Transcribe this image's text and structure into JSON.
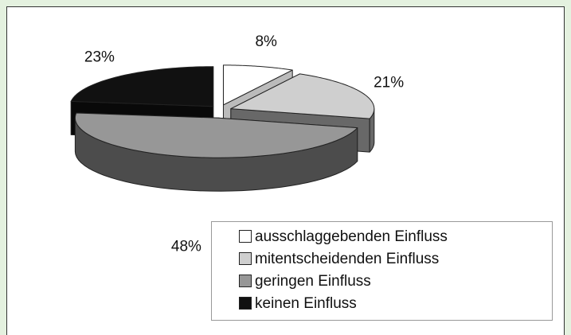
{
  "chart_data": {
    "type": "pie",
    "categories": [
      "ausschlaggebenden Einfluss",
      "mitentscheidenden Einfluss",
      "geringen Einfluss",
      "keinen Einfluss"
    ],
    "values": [
      8,
      21,
      48,
      23
    ],
    "value_labels": [
      "8%",
      "21%",
      "48%",
      "23%"
    ],
    "colors": [
      "#ffffff",
      "#cfcfcf",
      "#979797",
      "#111111"
    ],
    "legend": "bottom-right"
  }
}
